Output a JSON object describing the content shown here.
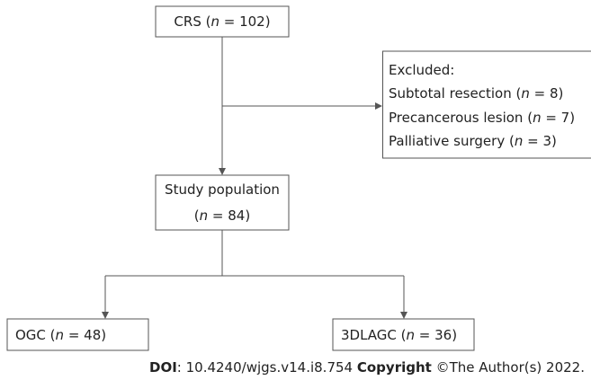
{
  "nodes": [
    {
      "lines": [
        [
          "CRS (",
          "n",
          " = 102)"
        ]
      ]
    },
    {
      "lines": [
        [
          "Excluded:"
        ],
        [
          "Subtotal resection (",
          "n",
          " = 8)"
        ],
        [
          "Precancerous lesion (",
          "n",
          " = 7)"
        ],
        [
          "Palliative surgery (",
          "n",
          " = 3)"
        ]
      ]
    },
    {
      "lines": [
        [
          "Study population"
        ],
        [
          "(",
          "n",
          " = 84)"
        ]
      ]
    },
    {
      "lines": [
        [
          "OGC (",
          "n",
          " = 48)"
        ]
      ]
    },
    {
      "lines": [
        [
          "3DLAGC (",
          "n",
          " = 36)"
        ]
      ]
    }
  ],
  "footer": [
    "DOI",
    ": 10.4240/wjgs.v14.i8.754 ",
    "Copyright",
    " ©The Author(s) 2022."
  ]
}
